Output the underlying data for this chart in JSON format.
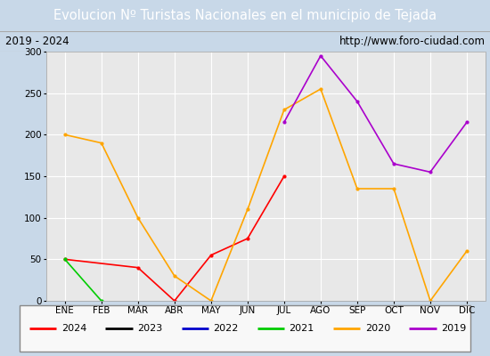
{
  "title": "Evolucion Nº Turistas Nacionales en el municipio de Tejada",
  "subtitle_left": "2019 - 2024",
  "subtitle_right": "http://www.foro-ciudad.com",
  "months": [
    "ENE",
    "FEB",
    "MAR",
    "ABR",
    "MAY",
    "JUN",
    "JUL",
    "AGO",
    "SEP",
    "OCT",
    "NOV",
    "DIC"
  ],
  "series": {
    "2024": [
      50,
      null,
      40,
      0,
      55,
      75,
      150,
      null,
      null,
      null,
      null,
      null
    ],
    "2023": [
      null,
      null,
      null,
      null,
      null,
      null,
      null,
      null,
      null,
      null,
      null,
      null
    ],
    "2022": [
      null,
      null,
      null,
      null,
      null,
      null,
      null,
      null,
      null,
      null,
      null,
      null
    ],
    "2021": [
      50,
      0,
      null,
      null,
      null,
      null,
      null,
      null,
      null,
      null,
      null,
      null
    ],
    "2020": [
      200,
      190,
      100,
      30,
      0,
      110,
      230,
      255,
      135,
      135,
      0,
      60
    ],
    "2019": [
      null,
      null,
      null,
      null,
      null,
      null,
      215,
      295,
      240,
      165,
      155,
      215
    ]
  },
  "colors": {
    "2024": "#ff0000",
    "2023": "#000000",
    "2022": "#0000cc",
    "2021": "#00cc00",
    "2020": "#ffa500",
    "2019": "#aa00cc"
  },
  "ylim": [
    0,
    300
  ],
  "yticks": [
    0,
    50,
    100,
    150,
    200,
    250,
    300
  ],
  "title_bg": "#4f81bd",
  "title_color": "#ffffff",
  "plot_bg": "#e8e8e8",
  "grid_color": "#ffffff",
  "fig_bg": "#c8d8e8",
  "legend_order": [
    "2024",
    "2023",
    "2022",
    "2021",
    "2020",
    "2019"
  ]
}
